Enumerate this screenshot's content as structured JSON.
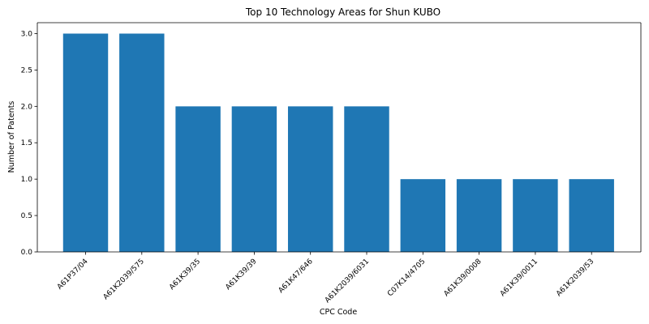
{
  "chart_data": {
    "type": "bar",
    "title": "Top 10 Technology Areas for Shun KUBO",
    "xlabel": "CPC Code",
    "ylabel": "Number of Patents",
    "categories": [
      "A61P37/04",
      "A61K2039/575",
      "A61K39/35",
      "A61K39/39",
      "A61K47/646",
      "A61K2039/6031",
      "C07K14/4705",
      "A61K39/0008",
      "A61K39/0011",
      "A61K2039/53"
    ],
    "values": [
      3,
      3,
      2,
      2,
      2,
      2,
      1,
      1,
      1,
      1
    ],
    "ylim": [
      0,
      3.15
    ],
    "yticks": [
      "0.0",
      "0.5",
      "1.0",
      "1.5",
      "2.0",
      "2.5",
      "3.0"
    ],
    "grid": false,
    "bar_color": "#1f77b4"
  }
}
